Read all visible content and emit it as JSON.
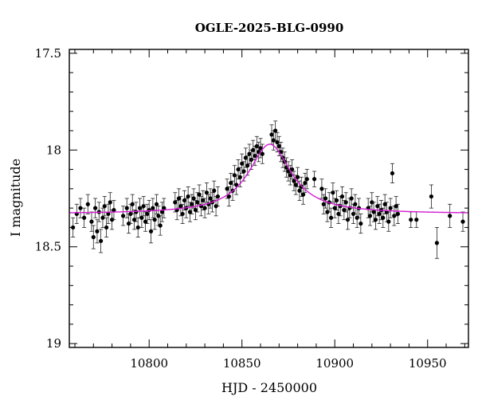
{
  "chart_data": {
    "type": "scatter",
    "title": "OGLE-2025-BLG-0990",
    "xlabel": "HJD - 2450000",
    "ylabel": "I magnitude",
    "xlim": [
      10757,
      10972
    ],
    "ylim": [
      19.02,
      17.48
    ],
    "y_inverted": true,
    "x_ticks": [
      10800,
      10850,
      10900,
      10950
    ],
    "x_tick_labels": [
      "10800",
      "10850",
      "10900",
      "10950"
    ],
    "y_ticks": [
      17.5,
      18,
      18.5,
      19
    ],
    "y_tick_labels": [
      "17.5",
      "18",
      "18.5",
      "19"
    ],
    "grid": false,
    "model_curve": {
      "color": "#d41cd4",
      "baseline_mag": 18.33,
      "peak_mag": 17.97,
      "t0": 10865,
      "tE": 14
    },
    "series": [
      {
        "marker_color": "#000000",
        "points": [
          [
            10759,
            18.4,
            0.05
          ],
          [
            10761,
            18.33,
            0.05
          ],
          [
            10763,
            18.3,
            0.05
          ],
          [
            10765,
            18.35,
            0.05
          ],
          [
            10767,
            18.28,
            0.05
          ],
          [
            10769,
            18.37,
            0.05
          ],
          [
            10770,
            18.45,
            0.06
          ],
          [
            10771,
            18.3,
            0.05
          ],
          [
            10772,
            18.42,
            0.06
          ],
          [
            10773,
            18.32,
            0.05
          ],
          [
            10774,
            18.47,
            0.06
          ],
          [
            10775,
            18.35,
            0.05
          ],
          [
            10776,
            18.29,
            0.05
          ],
          [
            10777,
            18.4,
            0.05
          ],
          [
            10778,
            18.33,
            0.05
          ],
          [
            10779,
            18.27,
            0.05
          ],
          [
            10780,
            18.36,
            0.05
          ],
          [
            10781,
            18.31,
            0.05
          ],
          [
            10786,
            18.34,
            0.05
          ],
          [
            10788,
            18.3,
            0.05
          ],
          [
            10789,
            18.38,
            0.05
          ],
          [
            10790,
            18.33,
            0.05
          ],
          [
            10791,
            18.28,
            0.05
          ],
          [
            10792,
            18.36,
            0.05
          ],
          [
            10793,
            18.32,
            0.05
          ],
          [
            10794,
            18.4,
            0.05
          ],
          [
            10795,
            18.3,
            0.05
          ],
          [
            10796,
            18.35,
            0.05
          ],
          [
            10797,
            18.29,
            0.05
          ],
          [
            10798,
            18.37,
            0.05
          ],
          [
            10799,
            18.33,
            0.05
          ],
          [
            10800,
            18.31,
            0.05
          ],
          [
            10801,
            18.42,
            0.06
          ],
          [
            10802,
            18.3,
            0.05
          ],
          [
            10803,
            18.36,
            0.05
          ],
          [
            10804,
            18.28,
            0.05
          ],
          [
            10805,
            18.34,
            0.05
          ],
          [
            10806,
            18.39,
            0.05
          ],
          [
            10807,
            18.32,
            0.05
          ],
          [
            10808,
            18.3,
            0.05
          ],
          [
            10814,
            18.27,
            0.05
          ],
          [
            10815,
            18.31,
            0.05
          ],
          [
            10816,
            18.25,
            0.05
          ],
          [
            10817,
            18.29,
            0.05
          ],
          [
            10818,
            18.33,
            0.05
          ],
          [
            10819,
            18.26,
            0.05
          ],
          [
            10820,
            18.3,
            0.05
          ],
          [
            10821,
            18.24,
            0.05
          ],
          [
            10822,
            18.32,
            0.05
          ],
          [
            10823,
            18.28,
            0.05
          ],
          [
            10824,
            18.25,
            0.05
          ],
          [
            10825,
            18.31,
            0.05
          ],
          [
            10826,
            18.27,
            0.05
          ],
          [
            10827,
            18.23,
            0.05
          ],
          [
            10828,
            18.29,
            0.05
          ],
          [
            10829,
            18.26,
            0.05
          ],
          [
            10830,
            18.3,
            0.05
          ],
          [
            10831,
            18.22,
            0.05
          ],
          [
            10832,
            18.28,
            0.05
          ],
          [
            10833,
            18.25,
            0.05
          ],
          [
            10834,
            18.27,
            0.05
          ],
          [
            10835,
            18.21,
            0.05
          ],
          [
            10836,
            18.29,
            0.05
          ],
          [
            10837,
            18.24,
            0.05
          ],
          [
            10842,
            18.2,
            0.05
          ],
          [
            10843,
            18.24,
            0.05
          ],
          [
            10844,
            18.17,
            0.05
          ],
          [
            10845,
            18.21,
            0.05
          ],
          [
            10846,
            18.13,
            0.05
          ],
          [
            10847,
            18.18,
            0.05
          ],
          [
            10848,
            18.1,
            0.05
          ],
          [
            10849,
            18.14,
            0.05
          ],
          [
            10850,
            18.07,
            0.05
          ],
          [
            10851,
            18.11,
            0.05
          ],
          [
            10852,
            18.04,
            0.05
          ],
          [
            10853,
            18.08,
            0.05
          ],
          [
            10854,
            18.02,
            0.05
          ],
          [
            10855,
            18.05,
            0.05
          ],
          [
            10856,
            18.0,
            0.05
          ],
          [
            10857,
            18.03,
            0.05
          ],
          [
            10858,
            17.98,
            0.05
          ],
          [
            10859,
            18.01,
            0.05
          ],
          [
            10860,
            17.99,
            0.05
          ],
          [
            10861,
            18.02,
            0.05
          ],
          [
            10866,
            17.92,
            0.05
          ],
          [
            10867,
            17.95,
            0.05
          ],
          [
            10868,
            17.9,
            0.05
          ],
          [
            10869,
            17.96,
            0.05
          ],
          [
            10870,
            17.98,
            0.05
          ],
          [
            10871,
            18.01,
            0.05
          ],
          [
            10872,
            18.04,
            0.05
          ],
          [
            10873,
            18.06,
            0.05
          ],
          [
            10874,
            18.09,
            0.05
          ],
          [
            10875,
            18.11,
            0.05
          ],
          [
            10876,
            18.13,
            0.05
          ],
          [
            10877,
            18.1,
            0.05
          ],
          [
            10878,
            18.16,
            0.05
          ],
          [
            10879,
            18.18,
            0.05
          ],
          [
            10880,
            18.14,
            0.05
          ],
          [
            10881,
            18.21,
            0.05
          ],
          [
            10882,
            18.19,
            0.05
          ],
          [
            10883,
            18.23,
            0.05
          ],
          [
            10884,
            18.17,
            0.05
          ],
          [
            10885,
            18.15,
            0.05
          ],
          [
            10889,
            18.15,
            0.04
          ],
          [
            10893,
            18.2,
            0.05
          ],
          [
            10894,
            18.28,
            0.05
          ],
          [
            10895,
            18.25,
            0.05
          ],
          [
            10896,
            18.32,
            0.05
          ],
          [
            10897,
            18.27,
            0.05
          ],
          [
            10898,
            18.35,
            0.05
          ],
          [
            10899,
            18.22,
            0.05
          ],
          [
            10900,
            18.3,
            0.05
          ],
          [
            10901,
            18.26,
            0.05
          ],
          [
            10902,
            18.33,
            0.05
          ],
          [
            10903,
            18.29,
            0.05
          ],
          [
            10904,
            18.24,
            0.05
          ],
          [
            10905,
            18.31,
            0.05
          ],
          [
            10906,
            18.27,
            0.05
          ],
          [
            10907,
            18.36,
            0.05
          ],
          [
            10908,
            18.3,
            0.05
          ],
          [
            10909,
            18.25,
            0.05
          ],
          [
            10910,
            18.33,
            0.05
          ],
          [
            10911,
            18.28,
            0.05
          ],
          [
            10912,
            18.35,
            0.05
          ],
          [
            10913,
            18.3,
            0.05
          ],
          [
            10914,
            18.38,
            0.05
          ],
          [
            10918,
            18.3,
            0.05
          ],
          [
            10919,
            18.34,
            0.05
          ],
          [
            10920,
            18.27,
            0.05
          ],
          [
            10921,
            18.32,
            0.05
          ],
          [
            10922,
            18.36,
            0.05
          ],
          [
            10923,
            18.29,
            0.05
          ],
          [
            10924,
            18.33,
            0.05
          ],
          [
            10925,
            18.31,
            0.05
          ],
          [
            10926,
            18.35,
            0.05
          ],
          [
            10927,
            18.28,
            0.05
          ],
          [
            10928,
            18.32,
            0.05
          ],
          [
            10929,
            18.37,
            0.05
          ],
          [
            10930,
            18.3,
            0.05
          ],
          [
            10931,
            18.12,
            0.05
          ],
          [
            10932,
            18.34,
            0.05
          ],
          [
            10933,
            18.29,
            0.05
          ],
          [
            10934,
            18.33,
            0.05
          ],
          [
            10941,
            18.36,
            0.04
          ],
          [
            10944,
            18.36,
            0.04
          ],
          [
            10952,
            18.24,
            0.06
          ],
          [
            10955,
            18.48,
            0.08
          ],
          [
            10962,
            18.34,
            0.06
          ],
          [
            10969,
            18.37,
            0.05
          ]
        ]
      }
    ]
  }
}
